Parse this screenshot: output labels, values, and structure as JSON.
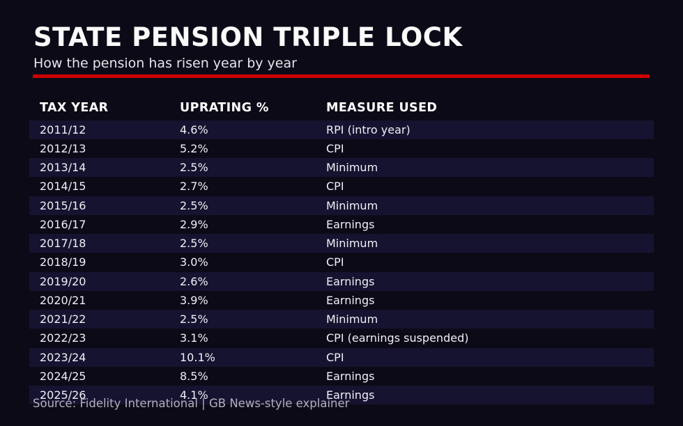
{
  "page": {
    "title": "STATE PENSION TRIPLE LOCK",
    "subtitle": "How the pension has risen year by year",
    "source": "Source: Fidelity International | GB News-style explainer"
  },
  "colors": {
    "background": "#0d0a17",
    "row_stripe": "#161330",
    "accent_red": "#cc0000",
    "title_text": "#fafafa",
    "body_text": "#f0eef6",
    "muted_text": "#b2afbc"
  },
  "table": {
    "headers": [
      "TAX YEAR",
      "UPRATING %",
      "MEASURE USED"
    ],
    "rows": [
      {
        "tax_year": "2011/12",
        "uprating": "4.6%",
        "measure": "RPI (intro year)"
      },
      {
        "tax_year": "2012/13",
        "uprating": "5.2%",
        "measure": "CPI"
      },
      {
        "tax_year": "2013/14",
        "uprating": "2.5%",
        "measure": "Minimum"
      },
      {
        "tax_year": "2014/15",
        "uprating": "2.7%",
        "measure": "CPI"
      },
      {
        "tax_year": "2015/16",
        "uprating": "2.5%",
        "measure": "Minimum"
      },
      {
        "tax_year": "2016/17",
        "uprating": "2.9%",
        "measure": "Earnings"
      },
      {
        "tax_year": "2017/18",
        "uprating": "2.5%",
        "measure": "Minimum"
      },
      {
        "tax_year": "2018/19",
        "uprating": "3.0%",
        "measure": "CPI"
      },
      {
        "tax_year": "2019/20",
        "uprating": "2.6%",
        "measure": "Earnings"
      },
      {
        "tax_year": "2020/21",
        "uprating": "3.9%",
        "measure": "Earnings"
      },
      {
        "tax_year": "2021/22",
        "uprating": "2.5%",
        "measure": "Minimum"
      },
      {
        "tax_year": "2022/23",
        "uprating": "3.1%",
        "measure": "CPI (earnings suspended)"
      },
      {
        "tax_year": "2023/24",
        "uprating": "10.1%",
        "measure": "CPI"
      },
      {
        "tax_year": "2024/25",
        "uprating": "8.5%",
        "measure": "Earnings"
      },
      {
        "tax_year": "2025/26",
        "uprating": "4.1%",
        "measure": "Earnings"
      }
    ]
  },
  "chart_data": {
    "type": "table",
    "title": "STATE PENSION TRIPLE LOCK",
    "subtitle": "How the pension has risen year by year",
    "columns": [
      "Tax year",
      "Uprating %",
      "Measure used"
    ],
    "categories": [
      "2011/12",
      "2012/13",
      "2013/14",
      "2014/15",
      "2015/16",
      "2016/17",
      "2017/18",
      "2018/19",
      "2019/20",
      "2020/21",
      "2021/22",
      "2022/23",
      "2023/24",
      "2024/25",
      "2025/26"
    ],
    "values": [
      4.6,
      5.2,
      2.5,
      2.7,
      2.5,
      2.9,
      2.5,
      3.0,
      2.6,
      3.9,
      2.5,
      3.1,
      10.1,
      8.5,
      4.1
    ],
    "measures": [
      "RPI (intro year)",
      "CPI",
      "Minimum",
      "CPI",
      "Minimum",
      "Earnings",
      "Minimum",
      "CPI",
      "Earnings",
      "Earnings",
      "Minimum",
      "CPI (earnings suspended)",
      "CPI",
      "Earnings",
      "Earnings"
    ],
    "source": "Source: Fidelity International | GB News-style explainer",
    "layout": "striped dark table, alternating rows highlighted starting with first data row"
  }
}
